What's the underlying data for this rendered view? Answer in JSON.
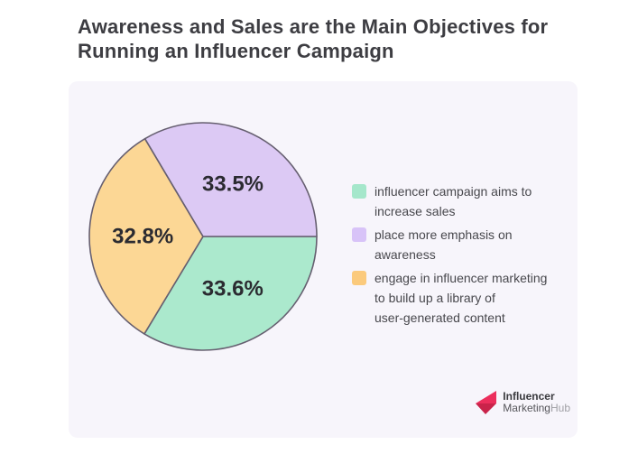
{
  "page": {
    "background_color": "#ffffff",
    "card_background_color": "#f7f5fb"
  },
  "title": {
    "line1": "Awareness and Sales are the Main Objectives for",
    "line2": "Running an Influencer Campaign"
  },
  "chart_data": {
    "type": "pie",
    "title": "Awareness and Sales are the Main Objectives for Running an Influencer Campaign",
    "units": "percent",
    "start_angle_deg": 0,
    "direction": "clockwise",
    "stroke_color": "#665f70",
    "stroke_width": 1.6,
    "value_label_color": "#2b2b31",
    "slices": [
      {
        "name": "increase-sales",
        "value": 33.6,
        "display": "33.6%",
        "color": "#abe9cd"
      },
      {
        "name": "ugc-library",
        "value": 32.8,
        "display": "32.8%",
        "color": "#fcd795"
      },
      {
        "name": "awareness",
        "value": 33.5,
        "display": "33.5%",
        "color": "#dcc9f4"
      }
    ],
    "legend_position": "right",
    "legend": [
      {
        "label": "influencer campaign aims to increase sales",
        "label_lines": [
          "influencer campaign aims to",
          "increase sales"
        ],
        "color": "#a5e7cb"
      },
      {
        "label": "place more emphasis on awareness",
        "label_lines": [
          "place more emphasis on",
          "awareness"
        ],
        "color": "#d8c3f8"
      },
      {
        "label": "engage in influencer marketing to build up a library of user-generated content",
        "label_lines": [
          "engage in influencer marketing",
          "to build up a library of",
          "user-generated content"
        ],
        "color": "#fbca7c"
      }
    ]
  },
  "brand": {
    "name_top": "Influencer",
    "name_bottom_dark": "Marketing",
    "name_bottom_light": "Hub",
    "accent_color": "#ec2e5c",
    "accent_dark_color": "#c9234a"
  }
}
